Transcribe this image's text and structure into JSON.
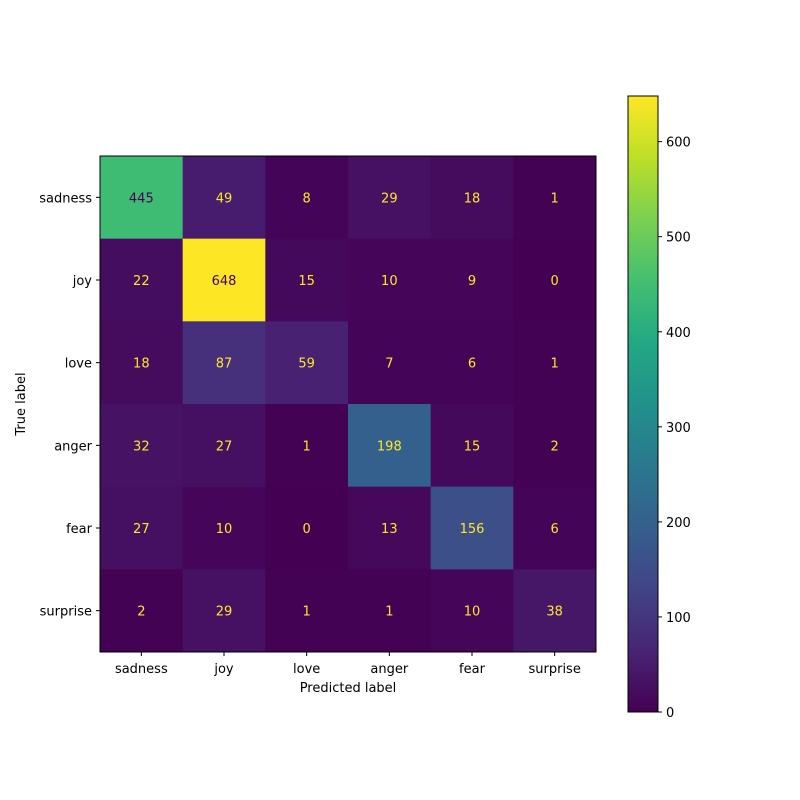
{
  "chart_data": {
    "type": "heatmap",
    "title": "",
    "xlabel": "Predicted label",
    "ylabel": "True label",
    "x_categories": [
      "sadness",
      "joy",
      "love",
      "anger",
      "fear",
      "surprise"
    ],
    "y_categories": [
      "sadness",
      "joy",
      "love",
      "anger",
      "fear",
      "surprise"
    ],
    "values": [
      [
        445,
        49,
        8,
        29,
        18,
        1
      ],
      [
        22,
        648,
        15,
        10,
        9,
        0
      ],
      [
        18,
        87,
        59,
        7,
        6,
        1
      ],
      [
        32,
        27,
        1,
        198,
        15,
        2
      ],
      [
        27,
        10,
        0,
        13,
        156,
        6
      ],
      [
        2,
        29,
        1,
        1,
        10,
        38
      ]
    ],
    "colormap": "viridis",
    "colorbar": {
      "range": [
        0,
        648
      ],
      "ticks": [
        0,
        100,
        200,
        300,
        400,
        500,
        600
      ]
    },
    "text_colors": {
      "dark": "#440154",
      "light": "#fde725"
    }
  }
}
